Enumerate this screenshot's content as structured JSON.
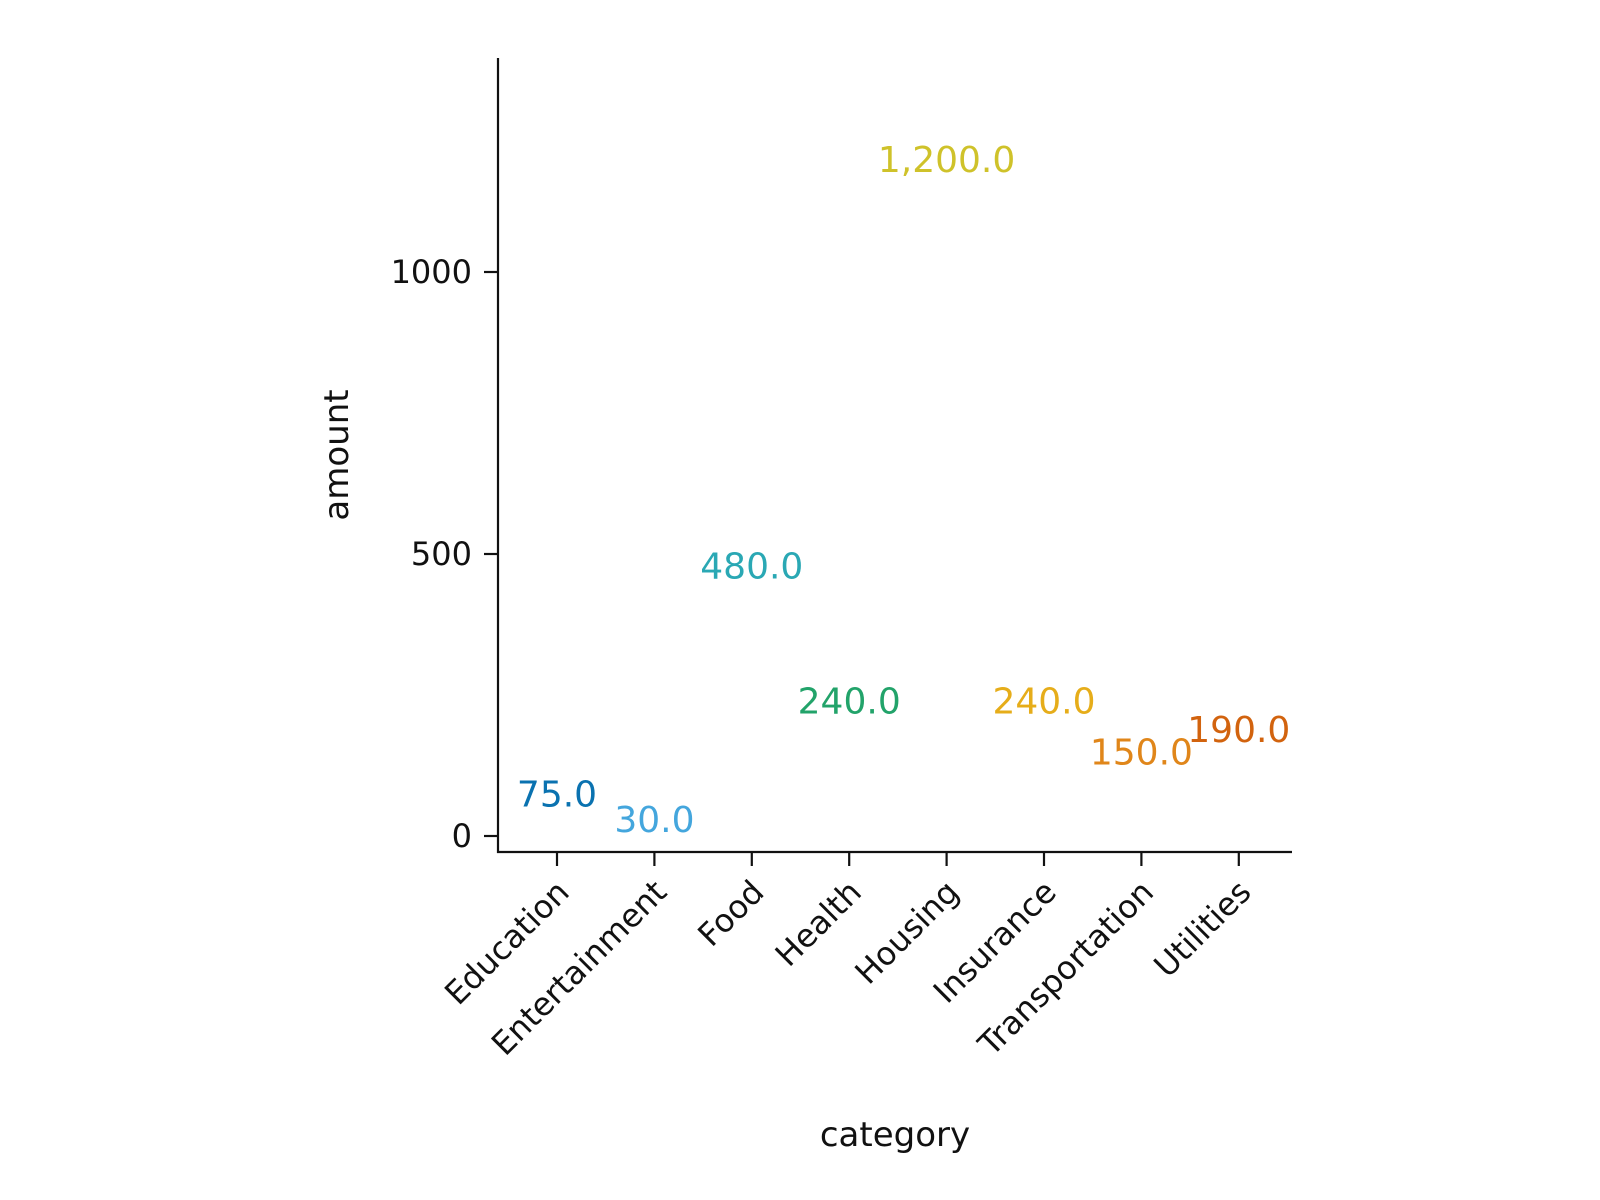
{
  "chart_data": {
    "type": "scatter",
    "title": "",
    "xlabel": "category",
    "ylabel": "amount",
    "categories": [
      "Education",
      "Entertainment",
      "Food",
      "Health",
      "Housing",
      "Insurance",
      "Transportation",
      "Utilities"
    ],
    "values": [
      75,
      30,
      480,
      240,
      1200,
      240,
      150,
      190
    ],
    "value_labels": [
      "75.0",
      "30.0",
      "480.0",
      "240.0",
      "1,200.0",
      "240.0",
      "150.0",
      "190.0"
    ],
    "colors": [
      "#0a72b0",
      "#44a6dd",
      "#2aa8b4",
      "#22a36a",
      "#cfc22a",
      "#e6ad1a",
      "#e0861a",
      "#d2630e"
    ],
    "yticks": [
      0,
      500,
      1000
    ],
    "ytick_labels": [
      "0",
      "500",
      "1000"
    ],
    "ylim": [
      -28,
      1380
    ],
    "grid": false,
    "legend": false
  }
}
